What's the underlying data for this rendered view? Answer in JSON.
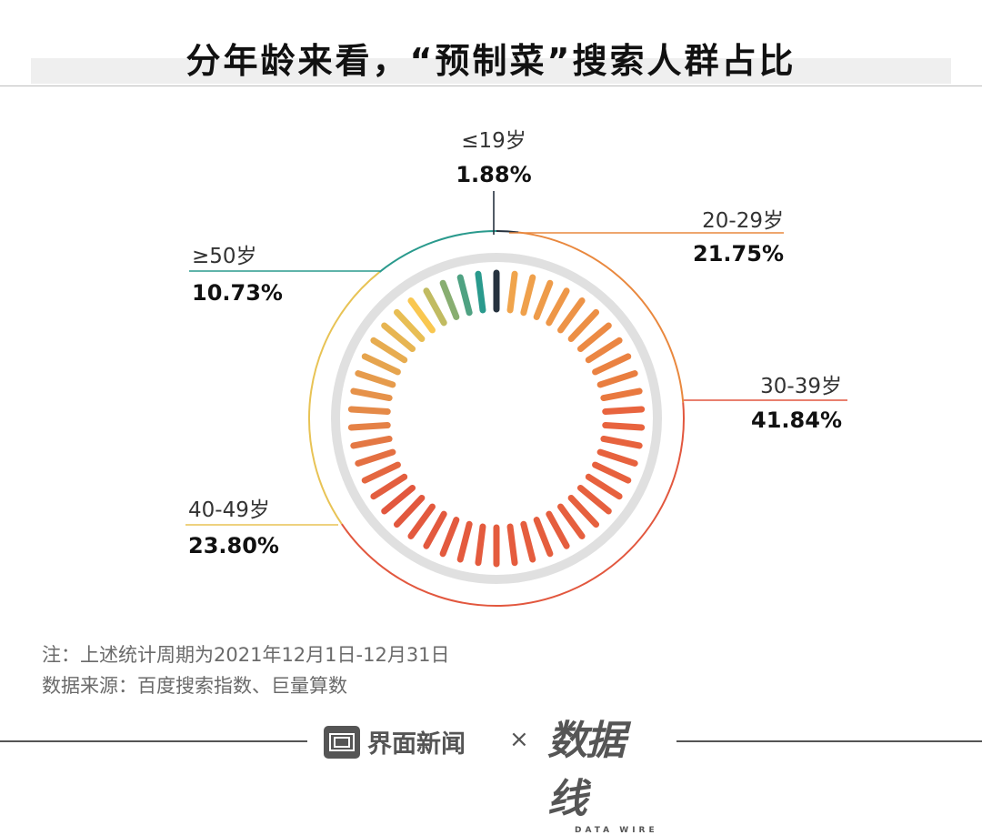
{
  "title": "分年龄来看，“预制菜”搜索人群占比",
  "chart_data": {
    "type": "pie",
    "style": "radial-dash-donut",
    "title": "分年龄来看，“预制菜”搜索人群占比",
    "categories": [
      "≤19岁",
      "20-29岁",
      "30-39岁",
      "40-49岁",
      "≥50岁"
    ],
    "values": [
      1.88,
      21.75,
      41.84,
      23.8,
      10.73
    ],
    "value_labels": [
      "1.88%",
      "21.75%",
      "41.84%",
      "23.80%",
      "10.73%"
    ],
    "unit": "%"
  },
  "segment_colors": [
    "#26323f",
    "#e9883e",
    "#e2573e",
    "#e8c355",
    "#2a9a8d"
  ],
  "notes": {
    "period": "注：上述统计周期为2021年12月1日-12月31日",
    "source": "数据来源：百度搜索指数、巨量算数"
  },
  "footer": {
    "brand": "界面新闻",
    "times": "×",
    "partner": "数据线",
    "partner_sub": "DATA WIRE"
  }
}
